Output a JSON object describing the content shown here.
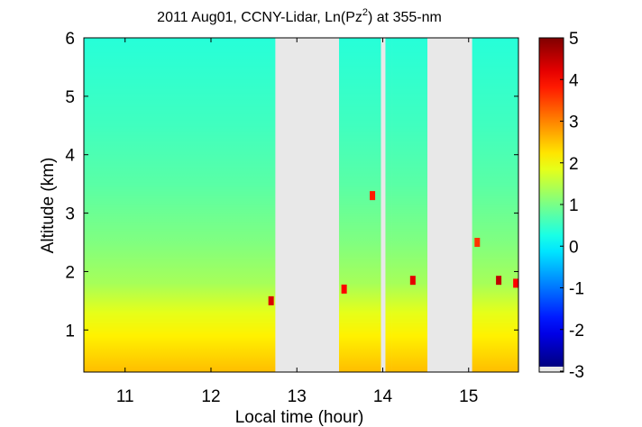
{
  "chart_data": {
    "type": "heatmap",
    "title": "2011 Aug01, CCNY-Lidar, Ln(Pz",
    "title_superscript": "2",
    "title_suffix": ") at 355-nm",
    "xlabel": "Local time (hour)",
    "ylabel": "Altitude (km)",
    "xlim": [
      10.52,
      15.58
    ],
    "ylim": [
      0.28,
      6.0
    ],
    "x_ticks": [
      11,
      12,
      13,
      14,
      15
    ],
    "y_ticks": [
      1,
      2,
      3,
      4,
      5,
      6
    ],
    "colorbar": {
      "min": -3,
      "max": 5,
      "ticks": [
        5,
        4,
        3,
        2,
        1,
        0,
        -1,
        -2,
        -3
      ],
      "colormap": "jet",
      "nodata_color": "#e8e8e8"
    },
    "data_segments": [
      {
        "start": 10.52,
        "end": 12.75
      },
      {
        "start": 13.49,
        "end": 13.98
      },
      {
        "start": 14.03,
        "end": 14.1
      },
      {
        "start": 14.1,
        "end": 14.52
      },
      {
        "start": 15.04,
        "end": 15.58
      }
    ],
    "nodata_gaps": [
      {
        "start": 12.75,
        "end": 13.49
      },
      {
        "start": 13.98,
        "end": 14.03
      },
      {
        "start": 14.52,
        "end": 15.04
      }
    ],
    "layer_profile": [
      {
        "altitude": 0.3,
        "value": 2.5
      },
      {
        "altitude": 0.9,
        "value": 2.1
      },
      {
        "altitude": 1.3,
        "value": 1.8
      },
      {
        "altitude": 1.8,
        "value": 1.3
      },
      {
        "altitude": 2.5,
        "value": 1.0
      },
      {
        "altitude": 3.5,
        "value": 0.7
      },
      {
        "altitude": 4.5,
        "value": 0.5
      },
      {
        "altitude": 6.0,
        "value": 0.3
      }
    ],
    "cloud_features": [
      {
        "time": 12.7,
        "altitude": 1.5,
        "value": 4.3
      },
      {
        "time": 13.55,
        "altitude": 1.7,
        "value": 4.0
      },
      {
        "time": 13.88,
        "altitude": 3.3,
        "value": 3.8
      },
      {
        "time": 14.35,
        "altitude": 1.85,
        "value": 4.2
      },
      {
        "time": 15.1,
        "altitude": 2.5,
        "value": 3.6
      },
      {
        "time": 15.35,
        "altitude": 1.85,
        "value": 4.5
      },
      {
        "time": 15.55,
        "altitude": 1.8,
        "value": 4.0
      }
    ]
  }
}
